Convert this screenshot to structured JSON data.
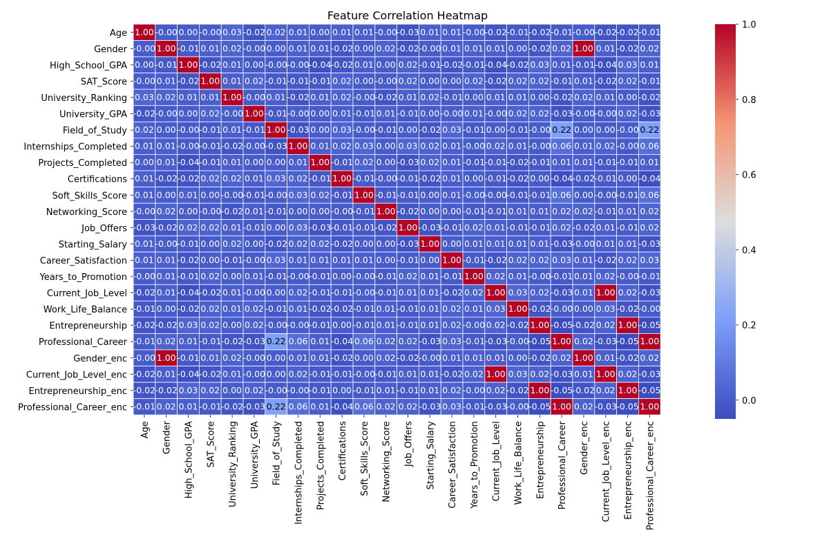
{
  "chart_data": {
    "type": "heatmap",
    "title": "Feature Correlation Heatmap",
    "labels": [
      "Age",
      "Gender",
      "High_School_GPA",
      "SAT_Score",
      "University_Ranking",
      "University_GPA",
      "Field_of_Study",
      "Internships_Completed",
      "Projects_Completed",
      "Certifications",
      "Soft_Skills_Score",
      "Networking_Score",
      "Job_Offers",
      "Starting_Salary",
      "Career_Satisfaction",
      "Years_to_Promotion",
      "Current_Job_Level",
      "Work_Life_Balance",
      "Entrepreneurship",
      "Professional_Career",
      "Gender_enc",
      "Current_Job_Level_enc",
      "Entrepreneurship_enc",
      "Professional_Career_enc"
    ],
    "matrix": [
      [
        "1.00",
        "-0.00",
        "0.00",
        "-0.00",
        "0.03",
        "-0.02",
        "0.02",
        "0.01",
        "0.00",
        "0.01",
        "0.01",
        "-0.00",
        "-0.03",
        "0.01",
        "0.01",
        "-0.00",
        "-0.02",
        "-0.01",
        "-0.02",
        "-0.01",
        "-0.00",
        "-0.02",
        "-0.02",
        "-0.01"
      ],
      [
        "-0.00",
        "1.00",
        "-0.01",
        "0.01",
        "0.02",
        "-0.00",
        "0.00",
        "0.01",
        "0.01",
        "-0.02",
        "0.00",
        "0.02",
        "-0.02",
        "-0.00",
        "0.01",
        "0.01",
        "0.01",
        "0.00",
        "-0.02",
        "0.02",
        "1.00",
        "0.01",
        "-0.02",
        "0.02"
      ],
      [
        "0.00",
        "-0.01",
        "1.00",
        "-0.02",
        "0.01",
        "0.00",
        "-0.00",
        "-0.00",
        "-0.04",
        "-0.02",
        "0.01",
        "0.00",
        "0.02",
        "-0.01",
        "-0.02",
        "-0.01",
        "-0.04",
        "-0.02",
        "0.03",
        "0.01",
        "-0.01",
        "-0.04",
        "0.03",
        "0.01"
      ],
      [
        "-0.00",
        "0.01",
        "-0.02",
        "1.00",
        "0.01",
        "0.02",
        "-0.01",
        "-0.01",
        "-0.01",
        "0.02",
        "0.00",
        "-0.00",
        "0.02",
        "0.00",
        "0.00",
        "0.02",
        "-0.02",
        "0.02",
        "0.02",
        "-0.01",
        "0.01",
        "-0.02",
        "0.02",
        "-0.01"
      ],
      [
        "0.03",
        "0.02",
        "0.01",
        "0.01",
        "1.00",
        "-0.00",
        "0.01",
        "-0.02",
        "0.01",
        "0.02",
        "-0.00",
        "-0.02",
        "0.01",
        "0.02",
        "-0.01",
        "0.00",
        "0.01",
        "0.01",
        "0.00",
        "-0.02",
        "0.02",
        "0.01",
        "0.00",
        "-0.02"
      ],
      [
        "-0.02",
        "-0.00",
        "0.00",
        "0.02",
        "-0.00",
        "1.00",
        "-0.01",
        "-0.00",
        "0.00",
        "0.01",
        "-0.01",
        "0.01",
        "-0.01",
        "0.00",
        "-0.00",
        "0.01",
        "-0.00",
        "0.02",
        "0.02",
        "-0.03",
        "-0.00",
        "-0.00",
        "0.02",
        "-0.03"
      ],
      [
        "0.02",
        "0.00",
        "-0.00",
        "-0.01",
        "0.01",
        "-0.01",
        "1.00",
        "-0.03",
        "0.00",
        "0.03",
        "-0.00",
        "-0.01",
        "0.00",
        "-0.02",
        "0.03",
        "-0.01",
        "0.00",
        "-0.01",
        "-0.00",
        "0.22",
        "0.00",
        "0.00",
        "-0.00",
        "0.22"
      ],
      [
        "0.01",
        "0.01",
        "-0.00",
        "-0.01",
        "-0.02",
        "-0.00",
        "-0.03",
        "1.00",
        "0.01",
        "0.02",
        "0.03",
        "0.00",
        "0.03",
        "0.02",
        "0.01",
        "-0.00",
        "0.02",
        "0.01",
        "-0.00",
        "0.06",
        "0.01",
        "0.02",
        "-0.00",
        "0.06"
      ],
      [
        "0.00",
        "0.01",
        "-0.04",
        "-0.01",
        "0.01",
        "0.00",
        "0.00",
        "0.01",
        "1.00",
        "-0.01",
        "0.02",
        "0.00",
        "-0.03",
        "0.02",
        "0.01",
        "-0.01",
        "-0.01",
        "-0.02",
        "-0.01",
        "0.01",
        "0.01",
        "-0.01",
        "-0.01",
        "0.01"
      ],
      [
        "0.01",
        "-0.02",
        "-0.02",
        "0.02",
        "0.02",
        "0.01",
        "0.03",
        "0.02",
        "-0.01",
        "1.00",
        "-0.01",
        "-0.00",
        "-0.01",
        "-0.02",
        "0.01",
        "0.00",
        "-0.01",
        "-0.02",
        "0.00",
        "-0.04",
        "-0.02",
        "-0.01",
        "0.00",
        "-0.04"
      ],
      [
        "0.01",
        "0.00",
        "0.01",
        "0.00",
        "-0.00",
        "-0.01",
        "-0.00",
        "0.03",
        "0.02",
        "-0.01",
        "1.00",
        "-0.01",
        "-0.01",
        "0.00",
        "0.01",
        "-0.00",
        "-0.00",
        "-0.01",
        "-0.01",
        "0.06",
        "0.00",
        "-0.00",
        "-0.01",
        "0.06"
      ],
      [
        "-0.00",
        "0.02",
        "0.00",
        "-0.00",
        "-0.02",
        "0.01",
        "-0.01",
        "0.00",
        "0.00",
        "-0.00",
        "-0.01",
        "1.00",
        "-0.02",
        "0.00",
        "0.00",
        "-0.01",
        "-0.01",
        "0.01",
        "0.01",
        "0.02",
        "0.02",
        "-0.01",
        "0.01",
        "0.02"
      ],
      [
        "-0.03",
        "-0.02",
        "0.02",
        "0.02",
        "0.01",
        "-0.01",
        "0.00",
        "0.03",
        "-0.03",
        "-0.01",
        "-0.01",
        "-0.02",
        "1.00",
        "-0.03",
        "-0.01",
        "0.02",
        "0.01",
        "-0.01",
        "-0.01",
        "0.02",
        "-0.02",
        "0.01",
        "-0.01",
        "0.02"
      ],
      [
        "0.01",
        "-0.00",
        "-0.01",
        "0.00",
        "0.02",
        "0.00",
        "-0.02",
        "0.02",
        "0.02",
        "-0.02",
        "0.00",
        "0.00",
        "-0.03",
        "1.00",
        "0.00",
        "0.01",
        "0.01",
        "0.01",
        "0.01",
        "-0.03",
        "-0.00",
        "0.01",
        "0.01",
        "-0.03"
      ],
      [
        "0.01",
        "0.01",
        "-0.02",
        "0.00",
        "-0.01",
        "-0.00",
        "0.03",
        "0.01",
        "0.01",
        "0.01",
        "0.01",
        "0.00",
        "-0.01",
        "0.00",
        "1.00",
        "-0.01",
        "-0.02",
        "0.02",
        "0.02",
        "0.03",
        "0.01",
        "-0.02",
        "0.02",
        "0.03"
      ],
      [
        "-0.00",
        "0.01",
        "-0.01",
        "0.02",
        "0.00",
        "0.01",
        "-0.01",
        "-0.00",
        "-0.01",
        "0.00",
        "-0.00",
        "-0.01",
        "0.02",
        "0.01",
        "-0.01",
        "1.00",
        "0.02",
        "0.01",
        "-0.00",
        "-0.01",
        "0.01",
        "0.02",
        "-0.00",
        "-0.01"
      ],
      [
        "-0.02",
        "0.01",
        "-0.04",
        "-0.02",
        "0.01",
        "-0.00",
        "0.00",
        "0.02",
        "-0.01",
        "-0.01",
        "-0.00",
        "-0.01",
        "0.01",
        "0.01",
        "-0.02",
        "0.02",
        "1.00",
        "0.03",
        "0.02",
        "-0.03",
        "0.01",
        "1.00",
        "0.02",
        "-0.03"
      ],
      [
        "-0.01",
        "0.00",
        "-0.02",
        "0.02",
        "0.01",
        "0.02",
        "-0.01",
        "0.01",
        "-0.02",
        "-0.02",
        "-0.01",
        "0.01",
        "-0.01",
        "0.01",
        "0.02",
        "0.01",
        "0.03",
        "1.00",
        "-0.02",
        "-0.00",
        "0.00",
        "0.03",
        "-0.02",
        "-0.00"
      ],
      [
        "-0.02",
        "-0.02",
        "0.03",
        "0.02",
        "0.00",
        "0.02",
        "-0.00",
        "-0.00",
        "-0.01",
        "0.00",
        "-0.01",
        "0.01",
        "-0.01",
        "0.01",
        "0.02",
        "-0.00",
        "0.02",
        "-0.02",
        "1.00",
        "-0.05",
        "-0.02",
        "0.02",
        "1.00",
        "-0.05"
      ],
      [
        "-0.01",
        "0.02",
        "0.01",
        "-0.01",
        "-0.02",
        "-0.03",
        "0.22",
        "0.06",
        "0.01",
        "-0.04",
        "0.06",
        "0.02",
        "0.02",
        "-0.03",
        "0.03",
        "-0.01",
        "-0.03",
        "-0.00",
        "-0.05",
        "1.00",
        "0.02",
        "-0.03",
        "-0.05",
        "1.00"
      ],
      [
        "-0.00",
        "1.00",
        "-0.01",
        "0.01",
        "0.02",
        "-0.00",
        "0.00",
        "0.01",
        "0.01",
        "-0.02",
        "0.00",
        "0.02",
        "-0.02",
        "-0.00",
        "0.01",
        "0.01",
        "0.01",
        "0.00",
        "-0.02",
        "0.02",
        "1.00",
        "0.01",
        "-0.02",
        "0.02"
      ],
      [
        "-0.02",
        "0.01",
        "-0.04",
        "-0.02",
        "0.01",
        "-0.00",
        "0.00",
        "0.02",
        "-0.01",
        "-0.01",
        "-0.00",
        "-0.01",
        "0.01",
        "0.01",
        "-0.02",
        "0.02",
        "1.00",
        "0.03",
        "0.02",
        "-0.03",
        "0.01",
        "1.00",
        "0.02",
        "-0.03"
      ],
      [
        "-0.02",
        "-0.02",
        "0.03",
        "0.02",
        "0.00",
        "0.02",
        "-0.00",
        "-0.00",
        "-0.01",
        "0.00",
        "-0.01",
        "0.01",
        "-0.01",
        "0.01",
        "0.02",
        "-0.00",
        "0.02",
        "-0.02",
        "1.00",
        "-0.05",
        "-0.02",
        "0.02",
        "1.00",
        "-0.05"
      ],
      [
        "-0.01",
        "0.02",
        "0.01",
        "-0.01",
        "-0.02",
        "-0.03",
        "0.22",
        "0.06",
        "0.01",
        "-0.04",
        "0.06",
        "0.02",
        "0.02",
        "-0.03",
        "0.03",
        "-0.01",
        "-0.03",
        "-0.00",
        "-0.05",
        "1.00",
        "0.02",
        "-0.03",
        "-0.05",
        "1.00"
      ]
    ],
    "colorbar": {
      "colormap": "coolwarm",
      "vmin": -0.05,
      "vmax": 1.0,
      "ticks": [
        "0.0",
        "0.2",
        "0.4",
        "0.6",
        "0.8",
        "1.0"
      ]
    },
    "colors": {
      "low": "#3b4cc0",
      "mid": "#dddddd",
      "high": "#b40426",
      "grid_lines": "#ffffff"
    }
  }
}
